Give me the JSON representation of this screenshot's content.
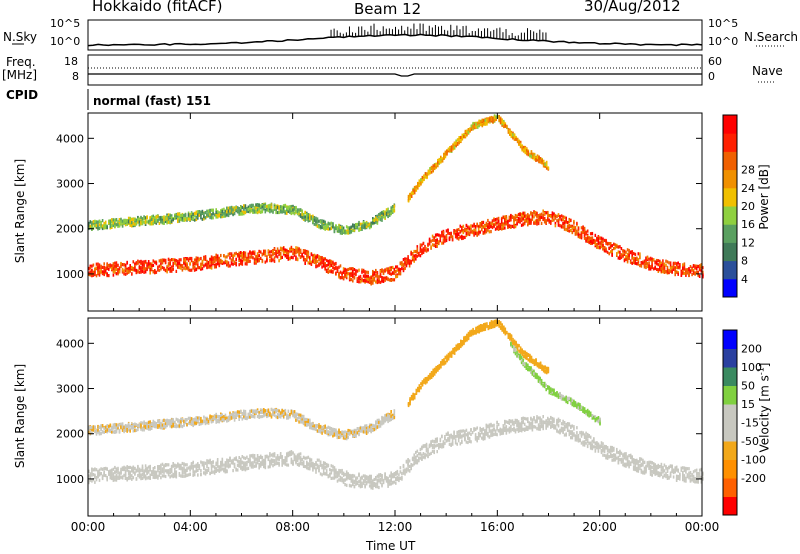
{
  "header": {
    "station": "Hokkaido (fitACF)",
    "beam": "Beam 12",
    "date": "30/Aug/2012"
  },
  "side_labels": {
    "nsky": "N.Sky",
    "freq_top": "Freq.",
    "freq_unit": "[MHz]",
    "cpid": "CPID",
    "nsearch": "N.Search",
    "nave": "Nave"
  },
  "noise_panel": {
    "left_ticks": [
      "10^5",
      "10^0"
    ],
    "right_ticks": [
      "10^5",
      "10^0"
    ]
  },
  "freq_panel": {
    "left_ticks": [
      "18",
      "8"
    ],
    "right_ticks": [
      "60",
      "0"
    ]
  },
  "cpid_panel": {
    "text": "normal (fast) 151"
  },
  "colors": {
    "power_scale": [
      "#0000ff",
      "#2a4f9a",
      "#3f7a58",
      "#5aa060",
      "#8fd040",
      "#f0c000",
      "#f09000",
      "#f06000",
      "#ff2000",
      "#ff0000"
    ],
    "velocity_scale": [
      "#ff0000",
      "#ff6000",
      "#ff9000",
      "#f2a81a",
      "#c8c8c0",
      "#c8c8c0",
      "#80d040",
      "#3a8a60",
      "#2a40a0",
      "#0000ff"
    ]
  },
  "chart_data": [
    {
      "type": "heatmap",
      "quantity": "Power",
      "ylabel": "Slant Range [km]",
      "ylim": [
        180,
        4560
      ],
      "y_ticks": [
        "1000",
        "2000",
        "3000",
        "4000"
      ],
      "y_tick_values": [
        1000,
        2000,
        3000,
        4000
      ],
      "x_ticks": [
        "00:00",
        "04:00",
        "08:00",
        "12:00",
        "16:00",
        "20:00",
        "00:00"
      ],
      "x_tick_hours": [
        0,
        4,
        8,
        12,
        16,
        20,
        24
      ],
      "colorbar_label": "Power [dB]",
      "colorbar_ticks": [
        "4",
        "8",
        "12",
        "16",
        "20",
        "24",
        "28"
      ],
      "colorbar_range": [
        0,
        32
      ],
      "bands": [
        {
          "name": "",
          "hours": [
            0,
            2,
            4,
            6,
            8,
            9,
            10,
            11,
            12,
            13,
            14,
            15,
            16,
            17,
            18,
            19,
            20,
            21,
            22,
            23,
            24
          ],
          "range_km": [
            1100,
            1180,
            1250,
            1380,
            1500,
            1300,
            1050,
            950,
            1050,
            1600,
            1900,
            2000,
            2150,
            2250,
            2300,
            2050,
            1700,
            1450,
            1250,
            1150,
            1100
          ],
          "width_km": 280,
          "value_db": 26
        },
        {
          "name": "",
          "hours": [
            0,
            2,
            4,
            6,
            7,
            8,
            9,
            10,
            11,
            12
          ],
          "range_km": [
            2100,
            2200,
            2300,
            2450,
            2500,
            2450,
            2150,
            2000,
            2150,
            2500
          ],
          "width_km": 180,
          "value_db": 13
        },
        {
          "name": "",
          "hours": [
            12.5,
            13,
            14,
            15,
            16,
            17,
            18
          ],
          "range_km": [
            2700,
            3100,
            3700,
            4300,
            4500,
            3800,
            3400
          ],
          "width_km": 130,
          "value_db": 20
        }
      ]
    },
    {
      "type": "heatmap",
      "quantity": "Velocity",
      "ylabel": "Slant Range [km]",
      "ylim": [
        180,
        4560
      ],
      "y_ticks": [
        "1000",
        "2000",
        "3000",
        "4000"
      ],
      "y_tick_values": [
        1000,
        2000,
        3000,
        4000
      ],
      "x_ticks": [
        "00:00",
        "04:00",
        "08:00",
        "12:00",
        "16:00",
        "20:00",
        "00:00"
      ],
      "x_tick_hours": [
        0,
        4,
        8,
        12,
        16,
        20,
        24
      ],
      "xlabel": "Time UT",
      "colorbar_label": "Velocity [m s",
      "colorbar_label_sup": "-1",
      "colorbar_label_end": "]",
      "colorbar_ticks": [
        "200",
        "100",
        "50",
        "15",
        "-15",
        "-50",
        "-100",
        "-200"
      ],
      "colorbar_tick_values": [
        200,
        100,
        50,
        15,
        -15,
        -50,
        -100,
        -200
      ],
      "colorbar_range": [
        -250,
        250
      ],
      "bands": [
        {
          "name": "",
          "hours": [
            0,
            2,
            4,
            6,
            8,
            9,
            10,
            11,
            12,
            13,
            14,
            15,
            16,
            17,
            18,
            19,
            20,
            21,
            22,
            23,
            24
          ],
          "range_km": [
            1100,
            1180,
            1250,
            1380,
            1500,
            1300,
            1050,
            950,
            1050,
            1600,
            1900,
            2000,
            2150,
            2250,
            2300,
            2050,
            1700,
            1450,
            1250,
            1150,
            1100
          ],
          "width_km": 300,
          "value_ms": 0
        },
        {
          "name": "",
          "hours": [
            0,
            2,
            4,
            6,
            7,
            8,
            9,
            10,
            11,
            12
          ],
          "range_km": [
            2100,
            2200,
            2300,
            2450,
            2500,
            2450,
            2150,
            2000,
            2150,
            2500
          ],
          "width_km": 180,
          "value_ms": -40
        },
        {
          "name": "",
          "hours": [
            12.5,
            13,
            14,
            15,
            16,
            17,
            18
          ],
          "range_km": [
            2700,
            3100,
            3700,
            4300,
            4500,
            3800,
            3400
          ],
          "width_km": 130,
          "value_ms": -70
        },
        {
          "name": "",
          "hours": [
            16.5,
            17,
            18,
            19,
            20
          ],
          "range_km": [
            4000,
            3600,
            3000,
            2700,
            2300
          ],
          "width_km": 120,
          "value_ms": 60
        }
      ]
    }
  ]
}
